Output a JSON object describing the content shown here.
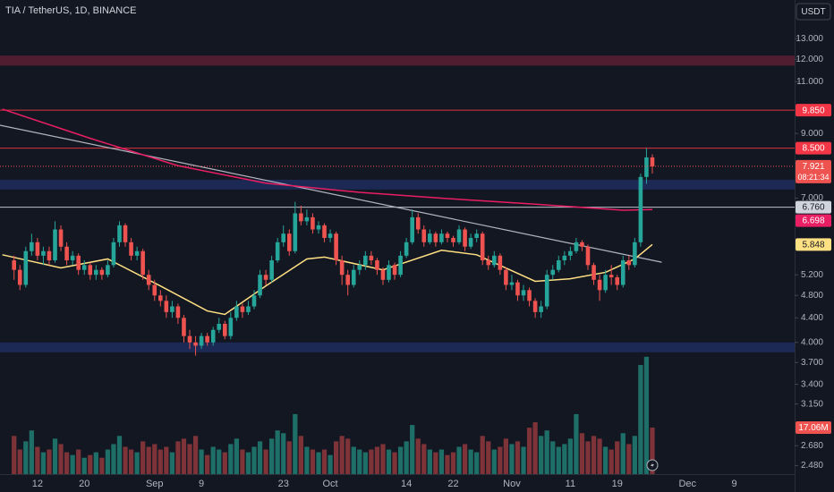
{
  "chart_data": {
    "type": "candlestick",
    "title": "TIA / TetherUS, 1D, BINANCE",
    "currency": "USDT",
    "log_scale": true,
    "grid": false,
    "colors": {
      "up": "#26a69a",
      "down": "#ef5350",
      "volume_up": "#1f6f69",
      "volume_down": "#7e3338"
    },
    "xlim": [
      -2.4,
      133.3
    ],
    "ylim": [
      2.4,
      15.1
    ],
    "volume_lim": [
      0,
      60
    ],
    "xticks": [
      {
        "value": 4,
        "label": "12"
      },
      {
        "value": 12,
        "label": "20"
      },
      {
        "value": 24,
        "label": "Sep"
      },
      {
        "value": 32,
        "label": "9"
      },
      {
        "value": 46,
        "label": "23"
      },
      {
        "value": 54,
        "label": "Oct"
      },
      {
        "value": 67,
        "label": "14"
      },
      {
        "value": 75,
        "label": "22"
      },
      {
        "value": 85,
        "label": "Nov"
      },
      {
        "value": 95,
        "label": "11"
      },
      {
        "value": 103,
        "label": "19"
      },
      {
        "value": 115,
        "label": "Dec"
      },
      {
        "value": 123,
        "label": "9"
      }
    ],
    "yticks": [
      {
        "value": 13,
        "label": "13.000"
      },
      {
        "value": 12,
        "label": "12.000"
      },
      {
        "value": 11,
        "label": "11.000"
      },
      {
        "value": 9,
        "label": "9.000"
      },
      {
        "value": 7,
        "label": "7.000"
      },
      {
        "value": 5.2,
        "label": "5.200"
      },
      {
        "value": 4.8,
        "label": "4.800"
      },
      {
        "value": 4.4,
        "label": "4.400"
      },
      {
        "value": 4,
        "label": "4.000"
      },
      {
        "value": 3.7,
        "label": "3.700"
      },
      {
        "value": 3.4,
        "label": "3.400"
      },
      {
        "value": 3.15,
        "label": "3.150"
      },
      {
        "value": 2.68,
        "label": "2.680"
      },
      {
        "value": 2.48,
        "label": "2.480"
      }
    ],
    "candles": [
      [
        5.5,
        5.6,
        5.1,
        5.3
      ],
      [
        5.3,
        5.4,
        4.9,
        5.0
      ],
      [
        5.0,
        5.8,
        4.95,
        5.7
      ],
      [
        5.7,
        6.1,
        5.6,
        5.9
      ],
      [
        5.9,
        6.0,
        5.5,
        5.6
      ],
      [
        5.6,
        5.8,
        5.4,
        5.7
      ],
      [
        5.7,
        5.8,
        5.4,
        5.5
      ],
      [
        5.5,
        6.4,
        5.45,
        6.2
      ],
      [
        6.2,
        6.3,
        5.7,
        5.8
      ],
      [
        5.8,
        5.9,
        5.4,
        5.5
      ],
      [
        5.5,
        5.7,
        5.4,
        5.6
      ],
      [
        5.6,
        5.65,
        5.2,
        5.3
      ],
      [
        5.3,
        5.5,
        5.2,
        5.4
      ],
      [
        5.4,
        5.45,
        5.1,
        5.2
      ],
      [
        5.2,
        5.4,
        5.1,
        5.3
      ],
      [
        5.3,
        5.35,
        5.1,
        5.2
      ],
      [
        5.2,
        5.5,
        5.15,
        5.4
      ],
      [
        5.4,
        6.0,
        5.35,
        5.9
      ],
      [
        5.9,
        6.4,
        5.8,
        6.3
      ],
      [
        6.3,
        6.35,
        5.8,
        5.9
      ],
      [
        5.9,
        6.0,
        5.5,
        5.6
      ],
      [
        5.6,
        5.8,
        5.5,
        5.7
      ],
      [
        5.7,
        5.75,
        5.1,
        5.2
      ],
      [
        5.2,
        5.3,
        4.9,
        5.0
      ],
      [
        5.0,
        5.1,
        4.7,
        4.8
      ],
      [
        4.8,
        4.9,
        4.6,
        4.7
      ],
      [
        4.7,
        4.8,
        4.4,
        4.5
      ],
      [
        4.5,
        4.7,
        4.4,
        4.6
      ],
      [
        4.6,
        4.65,
        4.3,
        4.4
      ],
      [
        4.4,
        4.45,
        4.0,
        4.1
      ],
      [
        4.1,
        4.2,
        3.9,
        4.0
      ],
      [
        4.0,
        4.1,
        3.8,
        3.95
      ],
      [
        3.95,
        4.15,
        3.9,
        4.1
      ],
      [
        4.1,
        4.15,
        3.95,
        4.0
      ],
      [
        4.0,
        4.25,
        3.95,
        4.2
      ],
      [
        4.2,
        4.4,
        4.15,
        4.3
      ],
      [
        4.3,
        4.35,
        4.05,
        4.1
      ],
      [
        4.1,
        4.5,
        4.05,
        4.4
      ],
      [
        4.4,
        4.7,
        4.35,
        4.6
      ],
      [
        4.6,
        4.65,
        4.4,
        4.5
      ],
      [
        4.5,
        4.7,
        4.45,
        4.6
      ],
      [
        4.6,
        4.9,
        4.55,
        4.8
      ],
      [
        4.8,
        5.3,
        4.75,
        5.2
      ],
      [
        5.2,
        5.3,
        5.0,
        5.1
      ],
      [
        5.1,
        5.6,
        5.05,
        5.5
      ],
      [
        5.5,
        6.0,
        5.45,
        5.9
      ],
      [
        5.9,
        6.3,
        5.8,
        6.1
      ],
      [
        6.1,
        6.2,
        5.6,
        5.7
      ],
      [
        5.7,
        6.9,
        5.65,
        6.6
      ],
      [
        6.6,
        6.8,
        6.3,
        6.4
      ],
      [
        6.4,
        6.7,
        6.3,
        6.5
      ],
      [
        6.5,
        6.6,
        6.1,
        6.2
      ],
      [
        6.2,
        6.4,
        6.1,
        6.3
      ],
      [
        6.3,
        6.35,
        5.9,
        6.0
      ],
      [
        6.0,
        6.2,
        5.9,
        6.1
      ],
      [
        6.1,
        6.15,
        5.4,
        5.5
      ],
      [
        5.5,
        5.6,
        5.0,
        5.2
      ],
      [
        5.2,
        5.3,
        4.8,
        5.0
      ],
      [
        5.0,
        5.4,
        4.95,
        5.3
      ],
      [
        5.3,
        5.5,
        5.2,
        5.4
      ],
      [
        5.4,
        5.7,
        5.3,
        5.6
      ],
      [
        5.6,
        5.7,
        5.4,
        5.5
      ],
      [
        5.5,
        5.55,
        5.2,
        5.3
      ],
      [
        5.3,
        5.35,
        5.0,
        5.1
      ],
      [
        5.1,
        5.5,
        5.05,
        5.4
      ],
      [
        5.4,
        5.45,
        5.1,
        5.2
      ],
      [
        5.2,
        5.7,
        5.15,
        5.6
      ],
      [
        5.6,
        6.0,
        5.55,
        5.9
      ],
      [
        5.9,
        6.7,
        5.85,
        6.5
      ],
      [
        6.5,
        6.6,
        6.1,
        6.2
      ],
      [
        6.2,
        6.3,
        5.8,
        5.9
      ],
      [
        5.9,
        6.2,
        5.85,
        6.1
      ],
      [
        6.1,
        6.15,
        5.8,
        5.9
      ],
      [
        5.9,
        6.2,
        5.85,
        6.1
      ],
      [
        6.1,
        6.15,
        5.9,
        6.0
      ],
      [
        6.0,
        6.05,
        5.8,
        5.9
      ],
      [
        5.9,
        6.3,
        5.85,
        6.2
      ],
      [
        6.2,
        6.25,
        5.7,
        5.8
      ],
      [
        5.8,
        6.1,
        5.75,
        6.0
      ],
      [
        6.0,
        6.2,
        5.9,
        6.1
      ],
      [
        6.1,
        6.15,
        5.4,
        5.5
      ],
      [
        5.5,
        5.6,
        5.3,
        5.4
      ],
      [
        5.4,
        5.7,
        5.35,
        5.6
      ],
      [
        5.6,
        5.65,
        5.2,
        5.3
      ],
      [
        5.3,
        5.35,
        4.9,
        5.0
      ],
      [
        5.0,
        5.2,
        4.9,
        5.05
      ],
      [
        5.05,
        5.1,
        4.7,
        4.8
      ],
      [
        4.8,
        5.0,
        4.7,
        4.9
      ],
      [
        4.9,
        4.95,
        4.6,
        4.7
      ],
      [
        4.7,
        4.75,
        4.4,
        4.5
      ],
      [
        4.5,
        4.7,
        4.4,
        4.6
      ],
      [
        4.6,
        5.3,
        4.55,
        5.2
      ],
      [
        5.2,
        5.4,
        5.1,
        5.3
      ],
      [
        5.3,
        5.6,
        5.25,
        5.5
      ],
      [
        5.5,
        5.7,
        5.4,
        5.6
      ],
      [
        5.6,
        5.8,
        5.5,
        5.7
      ],
      [
        5.7,
        6.0,
        5.65,
        5.9
      ],
      [
        5.9,
        5.95,
        5.7,
        5.8
      ],
      [
        5.8,
        5.85,
        5.3,
        5.4
      ],
      [
        5.4,
        5.45,
        5.0,
        5.1
      ],
      [
        5.1,
        5.2,
        4.7,
        4.9
      ],
      [
        4.9,
        5.3,
        4.85,
        5.2
      ],
      [
        5.2,
        5.4,
        5.0,
        5.15
      ],
      [
        5.15,
        5.2,
        4.9,
        5.0
      ],
      [
        5.0,
        5.6,
        4.95,
        5.5
      ],
      [
        5.5,
        5.6,
        5.3,
        5.4
      ],
      [
        5.4,
        6.0,
        5.35,
        5.9
      ],
      [
        5.9,
        7.7,
        5.8,
        7.6
      ],
      [
        7.6,
        8.5,
        7.4,
        8.2
      ],
      [
        8.2,
        8.3,
        7.7,
        7.921
      ]
    ],
    "countdown": "08:21:34",
    "volume": {
      "values": [
        14,
        9,
        12,
        16,
        10,
        8,
        9,
        13,
        11,
        8,
        7,
        9,
        6,
        7,
        8,
        6,
        9,
        11,
        14,
        10,
        9,
        8,
        12,
        10,
        11,
        9,
        10,
        8,
        12,
        13,
        11,
        14,
        9,
        7,
        10,
        9,
        8,
        11,
        13,
        9,
        8,
        10,
        12,
        9,
        13,
        16,
        15,
        12,
        22,
        14,
        10,
        9,
        8,
        9,
        7,
        12,
        14,
        13,
        10,
        9,
        8,
        9,
        10,
        11,
        9,
        8,
        10,
        12,
        18,
        13,
        11,
        9,
        8,
        9,
        7,
        8,
        10,
        11,
        9,
        8,
        14,
        12,
        9,
        10,
        13,
        11,
        12,
        10,
        17,
        19,
        14,
        16,
        12,
        10,
        11,
        13,
        22,
        15,
        12,
        14,
        13,
        10,
        9,
        12,
        15,
        11,
        14,
        40,
        43,
        17.06
      ],
      "last_label": "17.06M"
    },
    "levels": [
      {
        "value": 9.85,
        "label": "9.850",
        "color": "#f23645"
      },
      {
        "value": 8.5,
        "label": "8.500",
        "color": "#f23645"
      },
      {
        "value": 6.76,
        "label": "6.760",
        "color": "#d1d4dc"
      }
    ],
    "zones": [
      {
        "from": 11.71,
        "to": 12.17,
        "color": "#5c1f33"
      },
      {
        "from": 7.24,
        "to": 7.52,
        "color": "#1e2d5e"
      },
      {
        "from": 3.85,
        "to": 4.0,
        "color": "#1e2d5e"
      }
    ],
    "trendline": {
      "x": [
        -2.4,
        110.6
      ],
      "values": [
        9.29,
        5.46
      ],
      "color": "#b2b5be"
    },
    "ma200": {
      "x": [
        -2,
        13,
        28,
        43,
        59,
        74,
        89,
        104,
        109
      ],
      "values": [
        9.89,
        8.83,
        7.94,
        7.42,
        7.16,
        6.99,
        6.84,
        6.68,
        6.698
      ],
      "label": "6.698",
      "color": "#e91e63"
    },
    "ma20": {
      "x": [
        -2,
        8,
        16,
        25,
        33,
        36,
        43,
        50,
        53,
        63,
        73,
        79,
        89,
        95,
        101,
        106,
        109
      ],
      "values": [
        5.62,
        5.34,
        5.53,
        4.98,
        4.52,
        4.46,
        4.98,
        5.53,
        5.57,
        5.3,
        5.72,
        5.62,
        5.07,
        5.12,
        5.25,
        5.53,
        5.848
      ],
      "label": "5.848",
      "color": "#ffe082"
    }
  }
}
